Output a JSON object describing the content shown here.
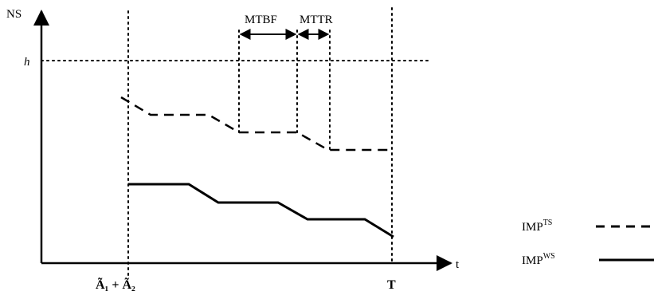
{
  "axes": {
    "y_label": "NS",
    "x_label": "t",
    "threshold_label": "h",
    "x_tick_left": "Ã₁ + Ã₂",
    "x_tick_right": "T"
  },
  "annotations": {
    "mtbf": "MTBF",
    "mttr": "MTTR"
  },
  "legend": {
    "ts": {
      "base": "IMP",
      "sup": "TS",
      "style": "dashed"
    },
    "ws": {
      "base": "IMP",
      "sup": "WS",
      "style": "solid"
    }
  },
  "colors": {
    "ink": "#000000",
    "background": "#ffffff"
  }
}
